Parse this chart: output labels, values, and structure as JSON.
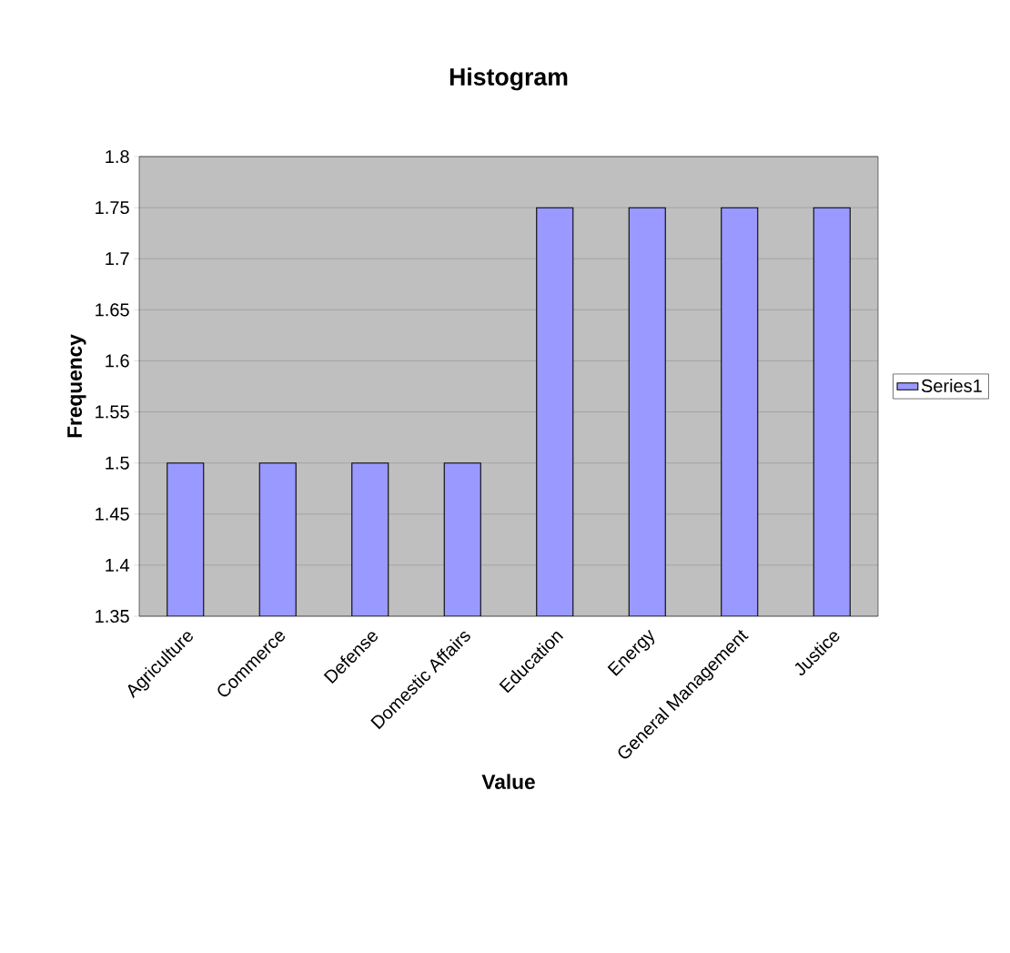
{
  "chart_data": {
    "type": "bar",
    "title": "Histogram",
    "xlabel": "Value",
    "ylabel": "Frequency",
    "categories": [
      "Agriculture",
      "Commerce",
      "Defense",
      "Domestic Affairs",
      "Education",
      "Energy",
      "General Management",
      "Justice"
    ],
    "series": [
      {
        "name": "Series1",
        "color": "#9999ff",
        "values": [
          1.5,
          1.5,
          1.5,
          1.5,
          1.75,
          1.75,
          1.75,
          1.75
        ]
      }
    ],
    "ylim": [
      1.35,
      1.8
    ],
    "yticks": [
      1.35,
      1.4,
      1.45,
      1.5,
      1.55,
      1.6,
      1.65,
      1.7,
      1.75,
      1.8
    ],
    "grid": "y",
    "legend": "right"
  }
}
